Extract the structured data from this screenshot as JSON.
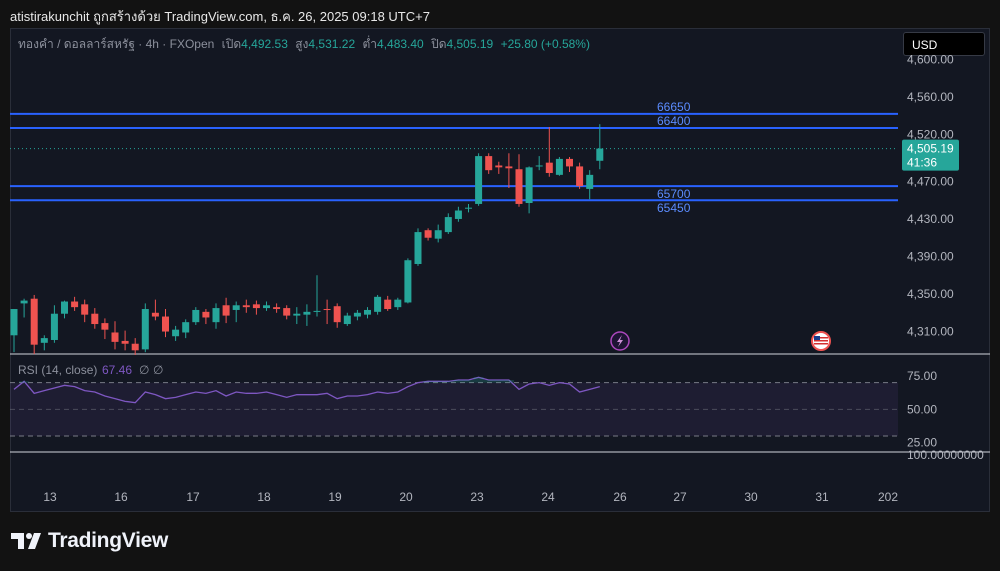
{
  "header": {
    "text": "atistirakunchit ถูกสร้างด้วย TradingView.com, ธ.ค. 26, 2025 09:18 UTC+7"
  },
  "legend": {
    "symbol": "ทองคำ / ดอลลาร์สหรัฐ · 4h · FXOpen",
    "open_label": "เปิด",
    "open": "4,492.53",
    "high_label": "สูง",
    "high": "4,531.22",
    "low_label": "ต่ำ",
    "low": "4,483.40",
    "close_label": "ปิด",
    "close": "4,505.19",
    "change": "+25.80 (+0.58%)"
  },
  "currency_button": "USD",
  "price_badge": {
    "price": "4,505.19",
    "countdown": "41:36",
    "color": "#26a69a"
  },
  "footer": {
    "brand": "TradingView"
  },
  "colors": {
    "up": "#26a69a",
    "down": "#ef5350",
    "level_line": "#2962ff",
    "level_text": "#5b8cff",
    "rsi": "#7e57c2"
  },
  "chart_data": [
    {
      "type": "candlestick",
      "ylim": [
        4285,
        4625
      ],
      "y_ticks": [
        "4,600.00",
        "4,560.00",
        "4,520.00",
        "4,470.00",
        "4,430.00",
        "4,390.00",
        "4,350.00",
        "4,310.00"
      ],
      "y_tick_values": [
        4600,
        4560,
        4520,
        4470,
        4430,
        4390,
        4350,
        4310
      ],
      "x_ticks": [
        "13",
        "16",
        "17",
        "18",
        "19",
        "20",
        "23",
        "24",
        "26",
        "27",
        "30",
        "31",
        "202"
      ],
      "horizontal_levels": [
        {
          "label": "66650",
          "price": 4542
        },
        {
          "label": "66400",
          "price": 4527
        },
        {
          "label": "65700",
          "price": 4465
        },
        {
          "label": "65450",
          "price": 4450
        }
      ],
      "candles": [
        {
          "o": 4306,
          "h": 4334,
          "l": 4288,
          "c": 4334
        },
        {
          "o": 4340,
          "h": 4345,
          "l": 4325,
          "c": 4343
        },
        {
          "o": 4345,
          "h": 4349,
          "l": 4286,
          "c": 4296
        },
        {
          "o": 4298,
          "h": 4306,
          "l": 4290,
          "c": 4303
        },
        {
          "o": 4301,
          "h": 4338,
          "l": 4298,
          "c": 4329
        },
        {
          "o": 4329,
          "h": 4343,
          "l": 4324,
          "c": 4342
        },
        {
          "o": 4342,
          "h": 4347,
          "l": 4332,
          "c": 4336
        },
        {
          "o": 4339,
          "h": 4344,
          "l": 4320,
          "c": 4328
        },
        {
          "o": 4329,
          "h": 4335,
          "l": 4313,
          "c": 4318
        },
        {
          "o": 4319,
          "h": 4324,
          "l": 4302,
          "c": 4312
        },
        {
          "o": 4309,
          "h": 4321,
          "l": 4291,
          "c": 4299
        },
        {
          "o": 4300,
          "h": 4311,
          "l": 4290,
          "c": 4297
        },
        {
          "o": 4297,
          "h": 4303,
          "l": 4285,
          "c": 4290
        },
        {
          "o": 4291,
          "h": 4340,
          "l": 4288,
          "c": 4334
        },
        {
          "o": 4330,
          "h": 4344,
          "l": 4322,
          "c": 4326
        },
        {
          "o": 4326,
          "h": 4334,
          "l": 4304,
          "c": 4310
        },
        {
          "o": 4305,
          "h": 4316,
          "l": 4300,
          "c": 4312
        },
        {
          "o": 4309,
          "h": 4323,
          "l": 4303,
          "c": 4320
        },
        {
          "o": 4320,
          "h": 4336,
          "l": 4317,
          "c": 4333
        },
        {
          "o": 4331,
          "h": 4334,
          "l": 4318,
          "c": 4325
        },
        {
          "o": 4320,
          "h": 4340,
          "l": 4313,
          "c": 4335
        },
        {
          "o": 4338,
          "h": 4346,
          "l": 4319,
          "c": 4327
        },
        {
          "o": 4333,
          "h": 4342,
          "l": 4320,
          "c": 4338
        },
        {
          "o": 4338,
          "h": 4344,
          "l": 4330,
          "c": 4336
        },
        {
          "o": 4339,
          "h": 4343,
          "l": 4328,
          "c": 4335
        },
        {
          "o": 4335,
          "h": 4342,
          "l": 4332,
          "c": 4338
        },
        {
          "o": 4336,
          "h": 4340,
          "l": 4330,
          "c": 4334
        },
        {
          "o": 4335,
          "h": 4338,
          "l": 4323,
          "c": 4327
        },
        {
          "o": 4327,
          "h": 4336,
          "l": 4318,
          "c": 4329
        },
        {
          "o": 4328,
          "h": 4339,
          "l": 4316,
          "c": 4331
        },
        {
          "o": 4331,
          "h": 4370,
          "l": 4326,
          "c": 4332
        },
        {
          "o": 4334,
          "h": 4344,
          "l": 4318,
          "c": 4333
        },
        {
          "o": 4337,
          "h": 4340,
          "l": 4314,
          "c": 4320
        },
        {
          "o": 4318,
          "h": 4330,
          "l": 4316,
          "c": 4327
        },
        {
          "o": 4326,
          "h": 4333,
          "l": 4322,
          "c": 4330
        },
        {
          "o": 4328,
          "h": 4336,
          "l": 4324,
          "c": 4333
        },
        {
          "o": 4331,
          "h": 4349,
          "l": 4328,
          "c": 4347
        },
        {
          "o": 4344,
          "h": 4348,
          "l": 4332,
          "c": 4334
        },
        {
          "o": 4336,
          "h": 4346,
          "l": 4333,
          "c": 4344
        },
        {
          "o": 4341,
          "h": 4388,
          "l": 4340,
          "c": 4386
        },
        {
          "o": 4382,
          "h": 4420,
          "l": 4380,
          "c": 4416
        },
        {
          "o": 4418,
          "h": 4420,
          "l": 4407,
          "c": 4410
        },
        {
          "o": 4409,
          "h": 4424,
          "l": 4405,
          "c": 4418
        },
        {
          "o": 4416,
          "h": 4436,
          "l": 4414,
          "c": 4432
        },
        {
          "o": 4430,
          "h": 4443,
          "l": 4427,
          "c": 4439
        },
        {
          "o": 4442,
          "h": 4446,
          "l": 4437,
          "c": 4442
        },
        {
          "o": 4446,
          "h": 4500,
          "l": 4444,
          "c": 4497
        },
        {
          "o": 4497,
          "h": 4500,
          "l": 4478,
          "c": 4482
        },
        {
          "o": 4487,
          "h": 4491,
          "l": 4478,
          "c": 4485
        },
        {
          "o": 4486,
          "h": 4500,
          "l": 4463,
          "c": 4484
        },
        {
          "o": 4483,
          "h": 4499,
          "l": 4443,
          "c": 4446
        },
        {
          "o": 4447,
          "h": 4486,
          "l": 4436,
          "c": 4485
        },
        {
          "o": 4486,
          "h": 4497,
          "l": 4482,
          "c": 4487
        },
        {
          "o": 4490,
          "h": 4528,
          "l": 4475,
          "c": 4479
        },
        {
          "o": 4477,
          "h": 4496,
          "l": 4476,
          "c": 4494
        },
        {
          "o": 4494,
          "h": 4496,
          "l": 4480,
          "c": 4486
        },
        {
          "o": 4486,
          "h": 4490,
          "l": 4462,
          "c": 4465
        },
        {
          "o": 4462,
          "h": 4482,
          "l": 4451,
          "c": 4477
        },
        {
          "o": 4492,
          "h": 4531,
          "l": 4483,
          "c": 4505
        }
      ]
    },
    {
      "type": "line",
      "title": "RSI (14, close)",
      "value_label": "67.46",
      "extra_labels": [
        "∅",
        "∅"
      ],
      "ylim": [
        18,
        90
      ],
      "y_ticks": [
        "75.00",
        "50.00",
        "25.00"
      ],
      "y_tick_values": [
        75,
        50,
        25
      ],
      "band": [
        30,
        70
      ],
      "values": [
        65,
        71,
        62,
        64,
        66,
        68,
        67,
        64,
        63,
        60,
        58,
        56,
        55,
        63,
        61,
        58,
        59,
        61,
        63,
        62,
        64,
        60,
        63,
        62,
        62,
        63,
        61,
        59,
        61,
        61,
        61,
        62,
        58,
        60,
        60,
        61,
        63,
        62,
        63,
        67,
        70,
        71,
        71,
        71,
        72,
        72,
        74,
        72,
        72,
        72,
        65,
        69,
        70,
        68,
        70,
        69,
        63,
        65,
        67
      ]
    }
  ]
}
